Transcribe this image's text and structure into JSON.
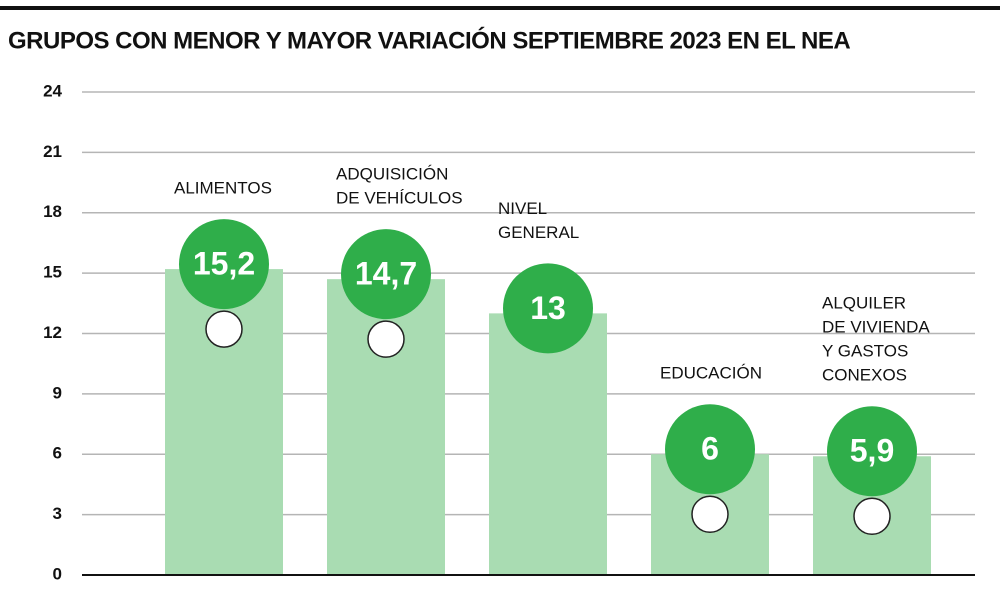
{
  "chart_data": {
    "type": "bar",
    "title": "GRUPOS CON MENOR Y MAYOR VARIACIÓN SEPTIEMBRE 2023 EN EL NEA",
    "categories": [
      [
        "ALIMENTOS"
      ],
      [
        "ADQUISICIÓN",
        "DE VEHÍCULOS"
      ],
      [
        "NIVEL",
        "GENERAL"
      ],
      [
        "EDUCACIÓN"
      ],
      [
        "ALQUILER",
        "DE VIVIENDA",
        "Y GASTOS",
        "CONEXOS"
      ]
    ],
    "values": [
      15.2,
      14.7,
      13,
      6,
      5.9
    ],
    "value_labels": [
      "15,2",
      "14,7",
      "13",
      "6",
      "5,9"
    ],
    "color": "#a9dcb2",
    "label_color": "#2fae4a",
    "ylim": [
      0,
      24
    ],
    "yticks": [
      0,
      3,
      6,
      9,
      12,
      15,
      18,
      21,
      24
    ],
    "grid": true
  }
}
